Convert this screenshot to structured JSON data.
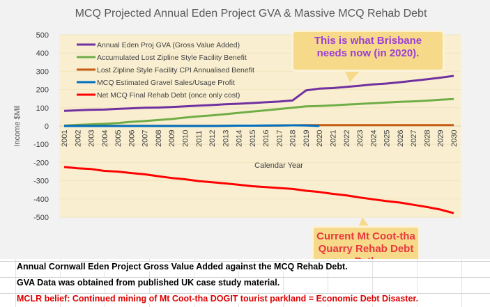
{
  "chart_data": {
    "type": "line",
    "title": "MCQ Projected Annual Eden Project GVA & Massive MCQ Rehab Debt",
    "xlabel": "Calendar Year",
    "ylabel": "Income $Mil",
    "ylim": [
      -500,
      500
    ],
    "yticks": [
      "500",
      "400",
      "300",
      "200",
      "100",
      "0",
      "-100",
      "-200",
      "-300",
      "-400",
      "-500"
    ],
    "x": [
      "2001",
      "2002",
      "2003",
      "2004",
      "2005",
      "2006",
      "2007",
      "2008",
      "2009",
      "2010",
      "2011",
      "2012",
      "2013",
      "2014",
      "2015",
      "2016",
      "2017",
      "2018",
      "2019",
      "2020",
      "2021",
      "2022",
      "2023",
      "2024",
      "2025",
      "2026",
      "2027",
      "2028",
      "2029",
      "2030"
    ],
    "legend_position": "top-left",
    "series": [
      {
        "name": "Annual Eden Proj GVA (Gross Value Added)",
        "color": "#7030a0",
        "values": [
          83,
          86,
          89,
          90,
          94,
          97,
          100,
          101,
          104,
          108,
          112,
          115,
          119,
          122,
          126,
          130,
          134,
          140,
          195,
          205,
          208,
          214,
          221,
          228,
          233,
          240,
          248,
          256,
          265,
          275
        ]
      },
      {
        "name": "Accumulated Lost Zipline Style Facility Benefit",
        "color": "#70ad47",
        "values": [
          2,
          6,
          9,
          12,
          16,
          23,
          27,
          33,
          38,
          46,
          53,
          58,
          65,
          72,
          79,
          86,
          93,
          100,
          108,
          110,
          113,
          117,
          121,
          125,
          129,
          133,
          135,
          139,
          144,
          148
        ]
      },
      {
        "name": "Lost Zipline Style Facility CPI Annualised Benefit",
        "color": "#c55a11",
        "values": [
          1,
          1,
          1,
          1,
          1,
          1,
          1,
          1,
          1,
          1,
          1,
          1,
          1,
          2,
          2,
          2,
          3,
          4,
          5,
          5,
          5,
          5,
          5,
          5,
          5,
          5,
          5,
          5,
          5,
          5
        ]
      },
      {
        "name": "MCQ Estimated Gravel Sales/Usage Profit",
        "color": "#0070c0",
        "values": [
          0,
          0,
          0,
          0,
          0,
          0,
          0,
          0,
          0,
          0,
          0,
          0,
          1,
          2,
          2,
          3,
          3,
          4,
          3,
          0,
          null,
          null,
          null,
          null,
          null,
          null,
          null,
          null,
          null,
          null
        ]
      },
      {
        "name": "Net MCQ Final Rehab Debt (once only cost)",
        "color": "#ff0000",
        "values": [
          -225,
          -232,
          -236,
          -246,
          -250,
          -258,
          -265,
          -275,
          -285,
          -292,
          -302,
          -308,
          -315,
          -322,
          -330,
          -335,
          -340,
          -345,
          -355,
          -362,
          -372,
          -380,
          -392,
          -402,
          -412,
          -420,
          -432,
          -444,
          -458,
          -478
        ]
      }
    ],
    "annotations": [
      "This is what Brisbane needs now (in 2020).",
      "Current Mt Coot-tha Quarry Rehab Debt Path"
    ]
  },
  "callouts": {
    "top_line1": "This is what Brisbane",
    "top_line2": "needs now (in 2020).",
    "bottom_line1": "Current Mt Coot-tha",
    "bottom_line2": "Quarry Rehab Debt Path",
    "top_color": "#9b3fd6",
    "bottom_color": "#e8383d"
  },
  "sheet": {
    "row1": "Annual Cornwall Eden Project Gross Value Added against the MCQ Rehab Debt.",
    "row2": "GVA Data was obtained from published UK case study material.",
    "row3": "MCLR belief: Continued mining of Mt Coot-tha DOGIT tourist parkland = Economic Debt Disaster."
  }
}
